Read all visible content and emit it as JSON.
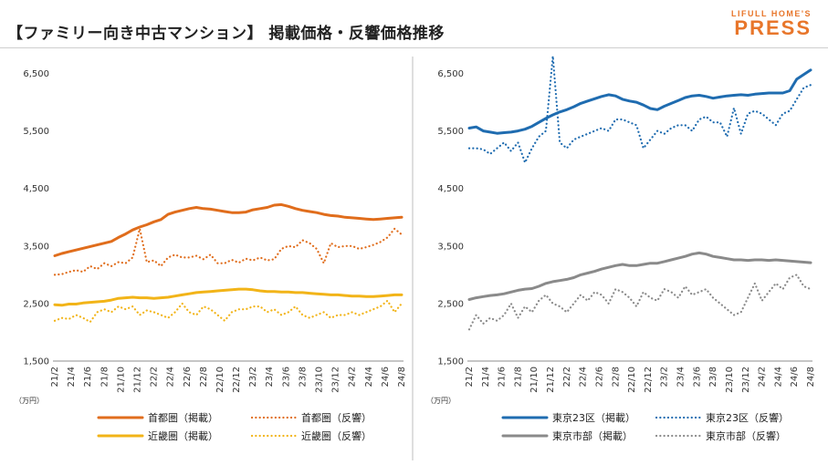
{
  "header": {
    "title": "【ファミリー向き中古マンション】 掲載価格・反響価格推移",
    "logo_small": "LIFULL HOME'S",
    "logo_big": "PRESS"
  },
  "colors": {
    "metro": "#e06d1c",
    "kinki": "#f2b418",
    "tokyo23": "#1f6cb0",
    "city": "#8a8a8a"
  },
  "chart_data": [
    {
      "type": "line",
      "unit_label": "（万円）",
      "ylim": [
        1500,
        7000
      ],
      "yticks": [
        1500,
        2500,
        3500,
        4500,
        5500,
        6500
      ],
      "ytick_labels": [
        "1,500",
        "2,500",
        "3,500",
        "4,500",
        "5,500",
        "6,500"
      ],
      "xtick_labels": [
        "21/2",
        "21/4",
        "21/6",
        "21/8",
        "21/10",
        "21/12",
        "22/2",
        "22/4",
        "22/6",
        "22/8",
        "22/10",
        "22/12",
        "23/2",
        "23/4",
        "23/6",
        "23/8",
        "23/10",
        "23/12",
        "24/2",
        "24/4",
        "24/6",
        "24/8"
      ],
      "legend_placement": "bottom",
      "grid": false,
      "series": [
        {
          "name": "首都圏（掲載）",
          "color": "#e06d1c",
          "style": "solid",
          "values": [
            3330,
            3370,
            3400,
            3430,
            3460,
            3490,
            3520,
            3550,
            3580,
            3650,
            3710,
            3780,
            3830,
            3870,
            3920,
            3960,
            4050,
            4090,
            4120,
            4150,
            4170,
            4150,
            4140,
            4120,
            4100,
            4080,
            4080,
            4090,
            4130,
            4150,
            4170,
            4210,
            4220,
            4190,
            4150,
            4120,
            4100,
            4080,
            4050,
            4030,
            4020,
            4000,
            3990,
            3980,
            3970,
            3960,
            3970,
            3980,
            3990,
            4000
          ]
        },
        {
          "name": "首都圏（反響）",
          "color": "#e06d1c",
          "style": "dotted",
          "values": [
            3000,
            3010,
            3050,
            3080,
            3050,
            3150,
            3100,
            3200,
            3150,
            3220,
            3200,
            3300,
            3800,
            3220,
            3250,
            3150,
            3300,
            3350,
            3300,
            3300,
            3330,
            3270,
            3350,
            3200,
            3200,
            3260,
            3210,
            3280,
            3250,
            3300,
            3250,
            3270,
            3450,
            3500,
            3480,
            3600,
            3550,
            3450,
            3200,
            3550,
            3480,
            3500,
            3500,
            3450,
            3480,
            3520,
            3570,
            3650,
            3800,
            3700
          ]
        },
        {
          "name": "近畿圏（掲載）",
          "color": "#f2b418",
          "style": "solid",
          "values": [
            2480,
            2470,
            2490,
            2490,
            2510,
            2520,
            2530,
            2540,
            2560,
            2590,
            2600,
            2610,
            2600,
            2600,
            2590,
            2600,
            2610,
            2630,
            2650,
            2670,
            2690,
            2700,
            2710,
            2720,
            2730,
            2740,
            2750,
            2750,
            2740,
            2720,
            2710,
            2710,
            2700,
            2700,
            2690,
            2690,
            2680,
            2670,
            2660,
            2650,
            2650,
            2640,
            2630,
            2630,
            2620,
            2620,
            2630,
            2640,
            2650,
            2650
          ]
        },
        {
          "name": "近畿圏（反響）",
          "color": "#f2b418",
          "style": "dotted",
          "values": [
            2200,
            2250,
            2230,
            2300,
            2250,
            2180,
            2350,
            2400,
            2350,
            2450,
            2400,
            2450,
            2300,
            2380,
            2350,
            2300,
            2250,
            2350,
            2500,
            2350,
            2300,
            2450,
            2400,
            2300,
            2200,
            2350,
            2400,
            2400,
            2450,
            2450,
            2350,
            2400,
            2300,
            2350,
            2450,
            2300,
            2250,
            2300,
            2350,
            2250,
            2300,
            2300,
            2350,
            2300,
            2350,
            2400,
            2450,
            2550,
            2350,
            2500
          ]
        }
      ]
    },
    {
      "type": "line",
      "unit_label": "（万円）",
      "ylim": [
        1500,
        7000
      ],
      "yticks": [
        1500,
        2500,
        3500,
        4500,
        5500,
        6500
      ],
      "ytick_labels": [
        "1,500",
        "2,500",
        "3,500",
        "4,500",
        "5,500",
        "6,500"
      ],
      "xtick_labels": [
        "21/2",
        "21/4",
        "21/6",
        "21/8",
        "21/10",
        "21/12",
        "22/2",
        "22/4",
        "22/6",
        "22/8",
        "22/10",
        "22/12",
        "23/2",
        "23/4",
        "23/6",
        "23/8",
        "23/10",
        "23/12",
        "24/2",
        "24/4",
        "24/6",
        "24/8"
      ],
      "legend_placement": "bottom",
      "grid": false,
      "series": [
        {
          "name": "東京23区（掲載）",
          "color": "#1f6cb0",
          "style": "solid",
          "values": [
            5550,
            5570,
            5500,
            5480,
            5460,
            5470,
            5480,
            5500,
            5530,
            5580,
            5650,
            5720,
            5780,
            5830,
            5870,
            5920,
            5980,
            6020,
            6060,
            6100,
            6130,
            6110,
            6050,
            6020,
            6000,
            5950,
            5890,
            5870,
            5930,
            5980,
            6030,
            6080,
            6110,
            6120,
            6100,
            6070,
            6090,
            6110,
            6120,
            6130,
            6120,
            6140,
            6150,
            6160,
            6160,
            6160,
            6200,
            6400,
            6480,
            6560
          ]
        },
        {
          "name": "東京23区（反響）",
          "color": "#1f6cb0",
          "style": "dotted",
          "values": [
            5200,
            5200,
            5180,
            5100,
            5200,
            5300,
            5150,
            5300,
            4950,
            5200,
            5400,
            5500,
            6800,
            5300,
            5200,
            5350,
            5400,
            5450,
            5500,
            5550,
            5500,
            5700,
            5700,
            5650,
            5600,
            5200,
            5350,
            5500,
            5450,
            5550,
            5600,
            5600,
            5500,
            5700,
            5750,
            5650,
            5650,
            5400,
            5900,
            5450,
            5800,
            5850,
            5800,
            5700,
            5600,
            5800,
            5850,
            6050,
            6250,
            6300
          ]
        },
        {
          "name": "東京市部（掲載）",
          "color": "#8a8a8a",
          "style": "solid",
          "values": [
            2570,
            2600,
            2620,
            2640,
            2650,
            2670,
            2700,
            2730,
            2750,
            2760,
            2800,
            2850,
            2880,
            2900,
            2920,
            2950,
            3000,
            3030,
            3060,
            3100,
            3130,
            3160,
            3180,
            3160,
            3160,
            3180,
            3200,
            3200,
            3230,
            3260,
            3290,
            3320,
            3360,
            3380,
            3360,
            3320,
            3300,
            3280,
            3260,
            3260,
            3250,
            3260,
            3260,
            3250,
            3260,
            3250,
            3240,
            3230,
            3220,
            3210
          ]
        },
        {
          "name": "東京市部（反響）",
          "color": "#8a8a8a",
          "style": "dotted",
          "values": [
            2050,
            2300,
            2150,
            2250,
            2200,
            2300,
            2500,
            2250,
            2450,
            2350,
            2550,
            2650,
            2500,
            2450,
            2350,
            2500,
            2650,
            2550,
            2700,
            2650,
            2500,
            2750,
            2700,
            2600,
            2450,
            2700,
            2600,
            2550,
            2750,
            2700,
            2600,
            2800,
            2650,
            2700,
            2750,
            2600,
            2500,
            2400,
            2300,
            2350,
            2600,
            2850,
            2550,
            2700,
            2850,
            2750,
            2950,
            3000,
            2800,
            2750
          ]
        }
      ]
    }
  ]
}
